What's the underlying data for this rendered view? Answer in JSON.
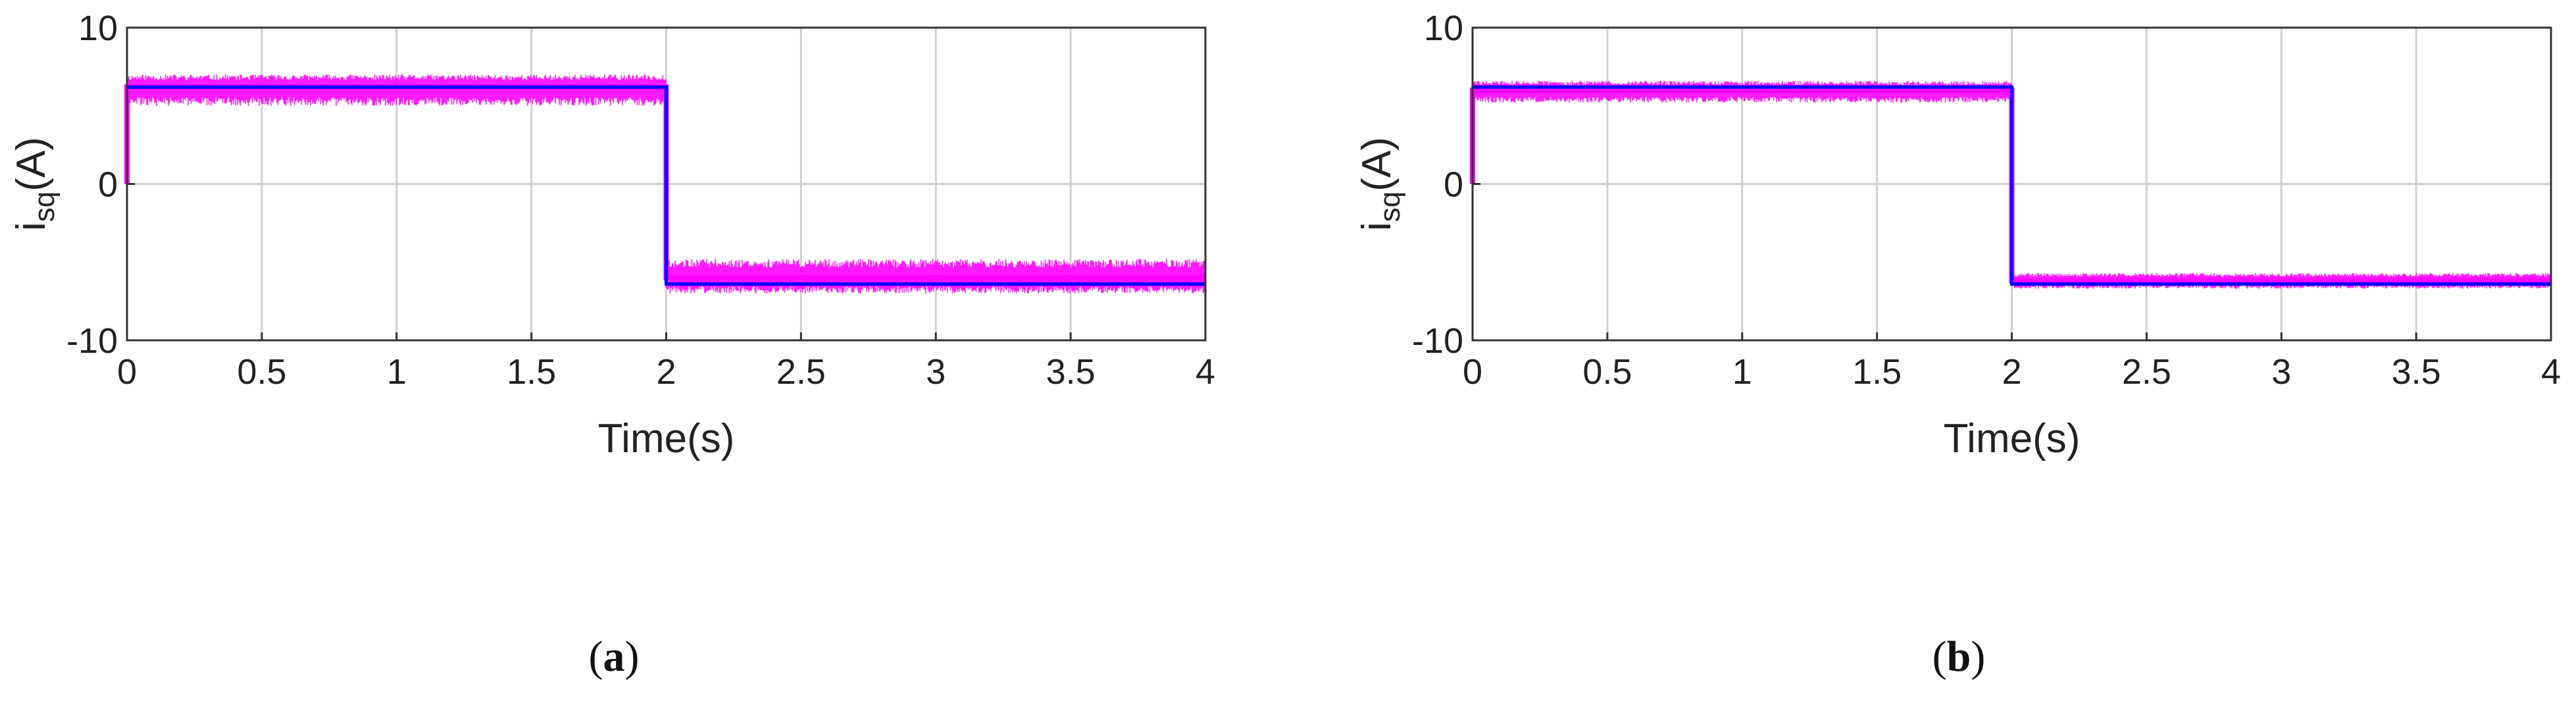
{
  "colors": {
    "measured": "#ff00ff",
    "reference": "#0000ff",
    "grid": "#d0d0d0",
    "axes": "#333333"
  },
  "chart_data": [
    {
      "type": "line",
      "panel_label": "a",
      "xlabel": "Time(s)",
      "ylabel_main": "i",
      "ylabel_sub": "sq",
      "ylabel_unit": "(A)",
      "xlim": [
        0,
        4
      ],
      "ylim": [
        -10,
        10
      ],
      "xticks": [
        0,
        0.5,
        1,
        1.5,
        2,
        2.5,
        3,
        3.5,
        4
      ],
      "xtick_labels": [
        "0",
        "0.5",
        "1",
        "1.5",
        "2",
        "2.5",
        "3",
        "3.5",
        "4"
      ],
      "yticks": [
        -10,
        0,
        10
      ],
      "ytick_labels": [
        "-10",
        "0",
        "10"
      ],
      "grid": true,
      "series": [
        {
          "role": "reference",
          "color": "#0000ff",
          "x": [
            0,
            2,
            2,
            4
          ],
          "y": [
            6.2,
            6.2,
            -6.4,
            -6.4
          ]
        },
        {
          "role": "measured",
          "color": "#ff00ff",
          "x": [
            0,
            2,
            2,
            4
          ],
          "y_center": [
            6.2,
            6.2,
            -6.0,
            -6.0
          ],
          "y_upper": [
            7.0,
            7.0,
            -4.8,
            -4.8
          ],
          "y_lower": [
            5.0,
            5.0,
            -7.0,
            -7.0
          ]
        }
      ]
    },
    {
      "type": "line",
      "panel_label": "b",
      "xlabel": "Time(s)",
      "ylabel_main": "i",
      "ylabel_sub": "sq",
      "ylabel_unit": "(A)",
      "xlim": [
        0,
        4
      ],
      "ylim": [
        -10,
        10
      ],
      "xticks": [
        0,
        0.5,
        1,
        1.5,
        2,
        2.5,
        3,
        3.5,
        4
      ],
      "xtick_labels": [
        "0",
        "0.5",
        "1",
        "1.5",
        "2",
        "2.5",
        "3",
        "3.5",
        "4"
      ],
      "yticks": [
        -10,
        0,
        10
      ],
      "ytick_labels": [
        "-10",
        "0",
        "10"
      ],
      "grid": true,
      "series": [
        {
          "role": "reference",
          "color": "#0000ff",
          "x": [
            0,
            2,
            2,
            4
          ],
          "y": [
            6.2,
            6.2,
            -6.4,
            -6.4
          ]
        },
        {
          "role": "measured",
          "color": "#ff00ff",
          "x": [
            0,
            2,
            2,
            4
          ],
          "y_center": [
            6.0,
            6.0,
            -6.2,
            -6.2
          ],
          "y_upper": [
            6.6,
            6.6,
            -5.7,
            -5.7
          ],
          "y_lower": [
            5.2,
            5.2,
            -6.7,
            -6.7
          ]
        }
      ]
    }
  ]
}
